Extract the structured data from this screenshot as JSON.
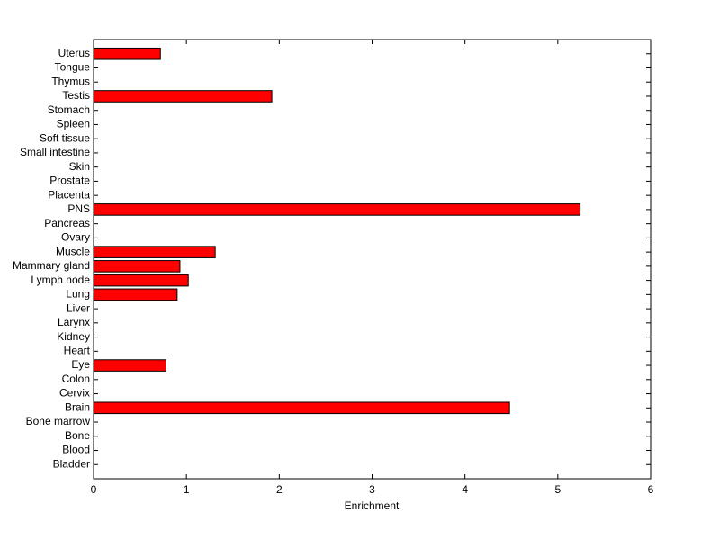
{
  "chart_data": {
    "type": "barh",
    "x_label": "Enrichment",
    "categories": [
      "Bladder",
      "Blood",
      "Bone",
      "Bone marrow",
      "Brain",
      "Cervix",
      "Colon",
      "Eye",
      "Heart",
      "Kidney",
      "Larynx",
      "Liver",
      "Lung",
      "Lymph node",
      "Mammary gland",
      "Muscle",
      "Ovary",
      "Pancreas",
      "PNS",
      "Placenta",
      "Prostate",
      "Skin",
      "Small intestine",
      "Soft tissue",
      "Spleen",
      "Stomach",
      "Testis",
      "Thymus",
      "Tongue",
      "Uterus"
    ],
    "values": [
      0,
      0,
      0,
      0,
      4.48,
      0,
      0,
      0.78,
      0,
      0,
      0,
      0,
      0.9,
      1.02,
      0.93,
      1.31,
      0,
      0,
      5.24,
      0,
      0,
      0,
      0,
      0,
      0,
      0,
      1.92,
      0,
      0,
      0.72
    ],
    "color": "#ff0000",
    "xlim": [
      0,
      6
    ],
    "xticks": [
      0,
      1,
      2,
      3,
      4,
      5,
      6
    ]
  }
}
